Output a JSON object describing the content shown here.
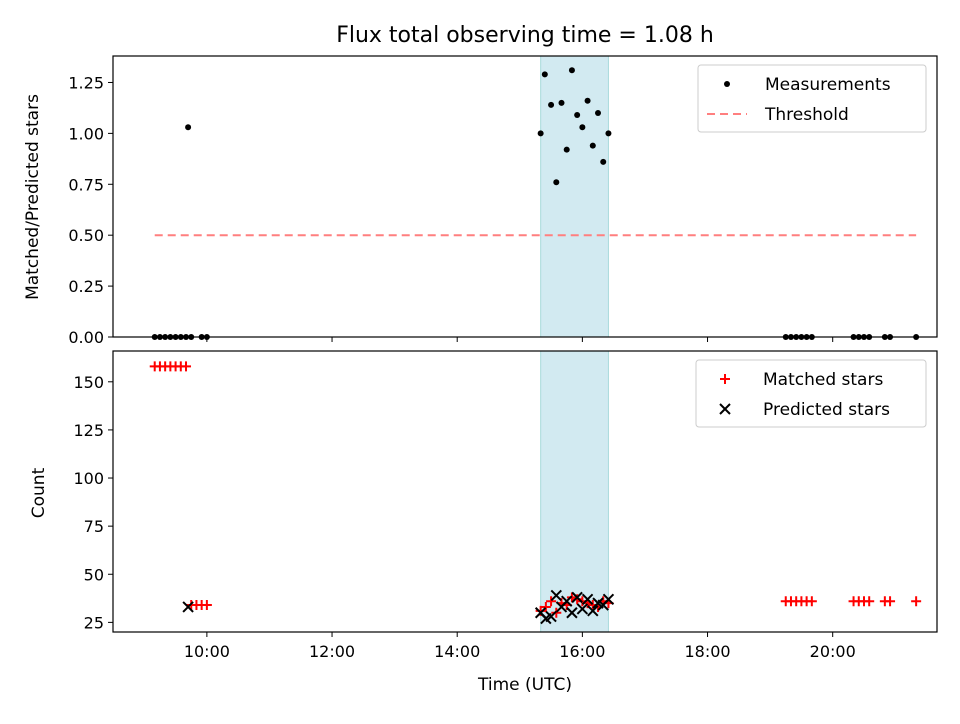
{
  "chart_data": [
    {
      "type": "scatter",
      "title": "Flux total observing time = 1.08 h",
      "xlabel": "",
      "ylabel": "Matched/Predicted stars",
      "xlim": [
        "08:30",
        "21:40"
      ],
      "ylim": [
        0,
        1.38
      ],
      "xticks": [
        "10:00",
        "12:00",
        "14:00",
        "16:00",
        "18:00",
        "20:00"
      ],
      "yticks": [
        "0.00",
        "0.25",
        "0.50",
        "0.75",
        "1.00",
        "1.25"
      ],
      "highlight_span": [
        "15:20",
        "16:25"
      ],
      "highlight_color": "#add8e6",
      "legend_position": "upper right",
      "series": [
        {
          "name": "Measurements",
          "kind": "scatter",
          "marker": "dot",
          "color": "#000000",
          "points": [
            [
              "09:10",
              0
            ],
            [
              "09:15",
              0
            ],
            [
              "09:20",
              0
            ],
            [
              "09:25",
              0
            ],
            [
              "09:30",
              0
            ],
            [
              "09:35",
              0
            ],
            [
              "09:40",
              0
            ],
            [
              "09:45",
              0
            ],
            [
              "09:42",
              1.03
            ],
            [
              "09:55",
              0
            ],
            [
              "10:00",
              0
            ],
            [
              "15:20",
              1.0
            ],
            [
              "15:24",
              1.29
            ],
            [
              "15:30",
              1.14
            ],
            [
              "15:35",
              0.76
            ],
            [
              "15:40",
              1.15
            ],
            [
              "15:45",
              0.92
            ],
            [
              "15:50",
              1.31
            ],
            [
              "15:55",
              1.09
            ],
            [
              "16:00",
              1.03
            ],
            [
              "16:05",
              1.16
            ],
            [
              "16:10",
              0.94
            ],
            [
              "16:15",
              1.1
            ],
            [
              "16:20",
              0.86
            ],
            [
              "16:25",
              1.0
            ],
            [
              "19:15",
              0
            ],
            [
              "19:20",
              0
            ],
            [
              "19:25",
              0
            ],
            [
              "19:30",
              0
            ],
            [
              "19:35",
              0
            ],
            [
              "19:40",
              0
            ],
            [
              "20:20",
              0
            ],
            [
              "20:25",
              0
            ],
            [
              "20:30",
              0
            ],
            [
              "20:35",
              0
            ],
            [
              "20:50",
              0
            ],
            [
              "20:55",
              0
            ],
            [
              "21:20",
              0
            ]
          ]
        },
        {
          "name": "Threshold",
          "kind": "line",
          "style": "dashed",
          "color": "#ff7f7f",
          "points": [
            [
              "09:10",
              0.5
            ],
            [
              "21:20",
              0.5
            ]
          ]
        }
      ]
    },
    {
      "type": "scatter",
      "title": "",
      "xlabel": "Time (UTC)",
      "ylabel": "Count",
      "xlim": [
        "08:30",
        "21:40"
      ],
      "ylim": [
        20,
        166
      ],
      "xticks": [
        "10:00",
        "12:00",
        "14:00",
        "16:00",
        "18:00",
        "20:00"
      ],
      "yticks": [
        "25",
        "50",
        "75",
        "100",
        "125",
        "150"
      ],
      "highlight_span": [
        "15:20",
        "16:25"
      ],
      "highlight_color": "#add8e6",
      "legend_position": "upper right",
      "series": [
        {
          "name": "Matched stars",
          "kind": "scatter",
          "marker": "plus",
          "color": "#ff0000",
          "points": [
            [
              "09:10",
              158
            ],
            [
              "09:15",
              158
            ],
            [
              "09:20",
              158
            ],
            [
              "09:25",
              158
            ],
            [
              "09:30",
              158
            ],
            [
              "09:35",
              158
            ],
            [
              "09:40",
              158
            ],
            [
              "09:45",
              34
            ],
            [
              "09:50",
              34
            ],
            [
              "09:55",
              34
            ],
            [
              "10:00",
              34
            ],
            [
              "15:20",
              31
            ],
            [
              "15:25",
              33
            ],
            [
              "15:30",
              36
            ],
            [
              "15:35",
              30
            ],
            [
              "15:40",
              35
            ],
            [
              "15:45",
              34
            ],
            [
              "15:50",
              38
            ],
            [
              "15:55",
              37
            ],
            [
              "16:00",
              36
            ],
            [
              "16:05",
              35
            ],
            [
              "16:10",
              34
            ],
            [
              "16:15",
              33
            ],
            [
              "16:20",
              36
            ],
            [
              "16:25",
              35
            ],
            [
              "19:15",
              36
            ],
            [
              "19:20",
              36
            ],
            [
              "19:25",
              36
            ],
            [
              "19:30",
              36
            ],
            [
              "19:35",
              36
            ],
            [
              "19:40",
              36
            ],
            [
              "20:20",
              36
            ],
            [
              "20:25",
              36
            ],
            [
              "20:30",
              36
            ],
            [
              "20:35",
              36
            ],
            [
              "20:50",
              36
            ],
            [
              "20:55",
              36
            ],
            [
              "21:20",
              36
            ]
          ]
        },
        {
          "name": "Predicted stars",
          "kind": "scatter",
          "marker": "x",
          "color": "#000000",
          "points": [
            [
              "09:42",
              33
            ],
            [
              "15:20",
              30
            ],
            [
              "15:25",
              27
            ],
            [
              "15:30",
              28
            ],
            [
              "15:35",
              39
            ],
            [
              "15:40",
              33
            ],
            [
              "15:45",
              36
            ],
            [
              "15:50",
              30
            ],
            [
              "15:55",
              38
            ],
            [
              "16:00",
              32
            ],
            [
              "16:05",
              37
            ],
            [
              "16:10",
              31
            ],
            [
              "16:15",
              35
            ],
            [
              "16:20",
              34
            ],
            [
              "16:25",
              37
            ]
          ]
        }
      ]
    }
  ]
}
